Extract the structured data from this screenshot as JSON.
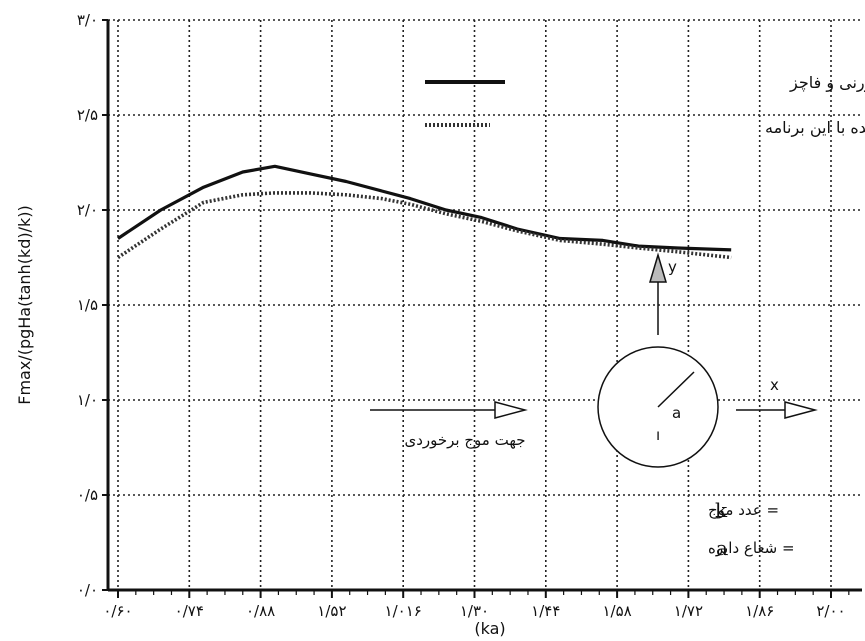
{
  "chart_data": {
    "type": "line",
    "xlabel": "(ka)",
    "ylabel": "Fmax/(pgHa(tanh(kd)/k))",
    "ylim": [
      0,
      3.0
    ],
    "grid": true,
    "x_tick_labels": [
      "۰/۶۰",
      "۰/۷۴",
      "۰/۸۸",
      "۱/۵۲",
      "۱/۰۱۶",
      "۱/۳۰",
      "۱/۴۴",
      "۱/۵۸",
      "۱/۷۲",
      "۱/۸۶",
      "۲/۰۰"
    ],
    "y_tick_values": [
      0,
      0.5,
      1.0,
      1.5,
      2.0,
      2.5,
      3.0
    ],
    "y_tick_labels": [
      "۰/۰",
      "۰/۵",
      "۱/۰",
      "۱/۵",
      "۲/۰",
      "۲/۵",
      "۳/۰"
    ],
    "series": [
      {
        "name": "راه حل صحیح با مک کورنی و فاچز",
        "style": "solid",
        "color": "#111111",
        "values": [
          1.85,
          2.0,
          2.12,
          2.2,
          2.23,
          2.19,
          2.15,
          2.1,
          2.06,
          2.0,
          1.96,
          1.9,
          1.85,
          1.84,
          1.81,
          1.8,
          1.79
        ]
      },
      {
        "name": "محاسبه شده با این برنامه",
        "style": "dotted",
        "color": "#333333",
        "values": [
          1.75,
          1.9,
          2.04,
          2.08,
          2.09,
          2.09,
          2.08,
          2.06,
          2.03,
          1.98,
          1.94,
          1.89,
          1.84,
          1.82,
          1.8,
          1.78,
          1.75
        ]
      }
    ],
    "x_positions_by_tick_index": [
      0,
      0.6,
      1.2,
      1.75,
      2.2,
      2.7,
      3.2,
      3.7,
      4.1,
      4.6,
      5.1,
      5.6,
      6.2,
      6.8,
      7.3,
      7.85,
      8.6
    ]
  },
  "diagram": {
    "wave_direction_label": "جهت موج برخوردی",
    "radius_label": "a",
    "x_axis_label": "x",
    "y_axis_label": "y",
    "k_definition": "= عدد موج",
    "k_symbol": "k",
    "a_definition": "= شعاع دایره",
    "a_symbol": "a"
  }
}
